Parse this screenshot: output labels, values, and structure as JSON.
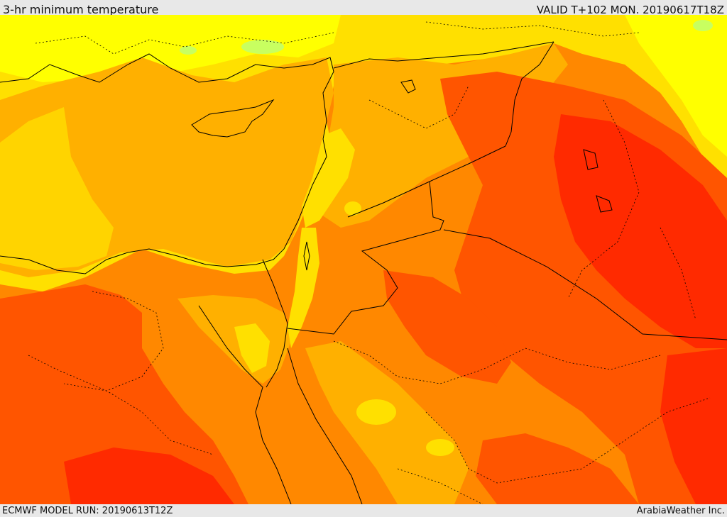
{
  "header": {
    "title": "3-hr minimum temperature",
    "valid": "VALID T+102 MON. 20190617T18Z"
  },
  "footer": {
    "model_run": "ECMWF MODEL RUN: 20190613T12Z",
    "credit": "ArabiaWeather Inc."
  },
  "map": {
    "field": "3-hr minimum temperature",
    "palette": {
      "pale_yellow": "#ffff00",
      "yellow": "#ffe000",
      "gold": "#ffb000",
      "orange": "#ff8800",
      "deep_orange": "#ff5500",
      "red_orange": "#ff2a00",
      "light_green": "#c8ff60"
    },
    "border_color": "#000000"
  }
}
